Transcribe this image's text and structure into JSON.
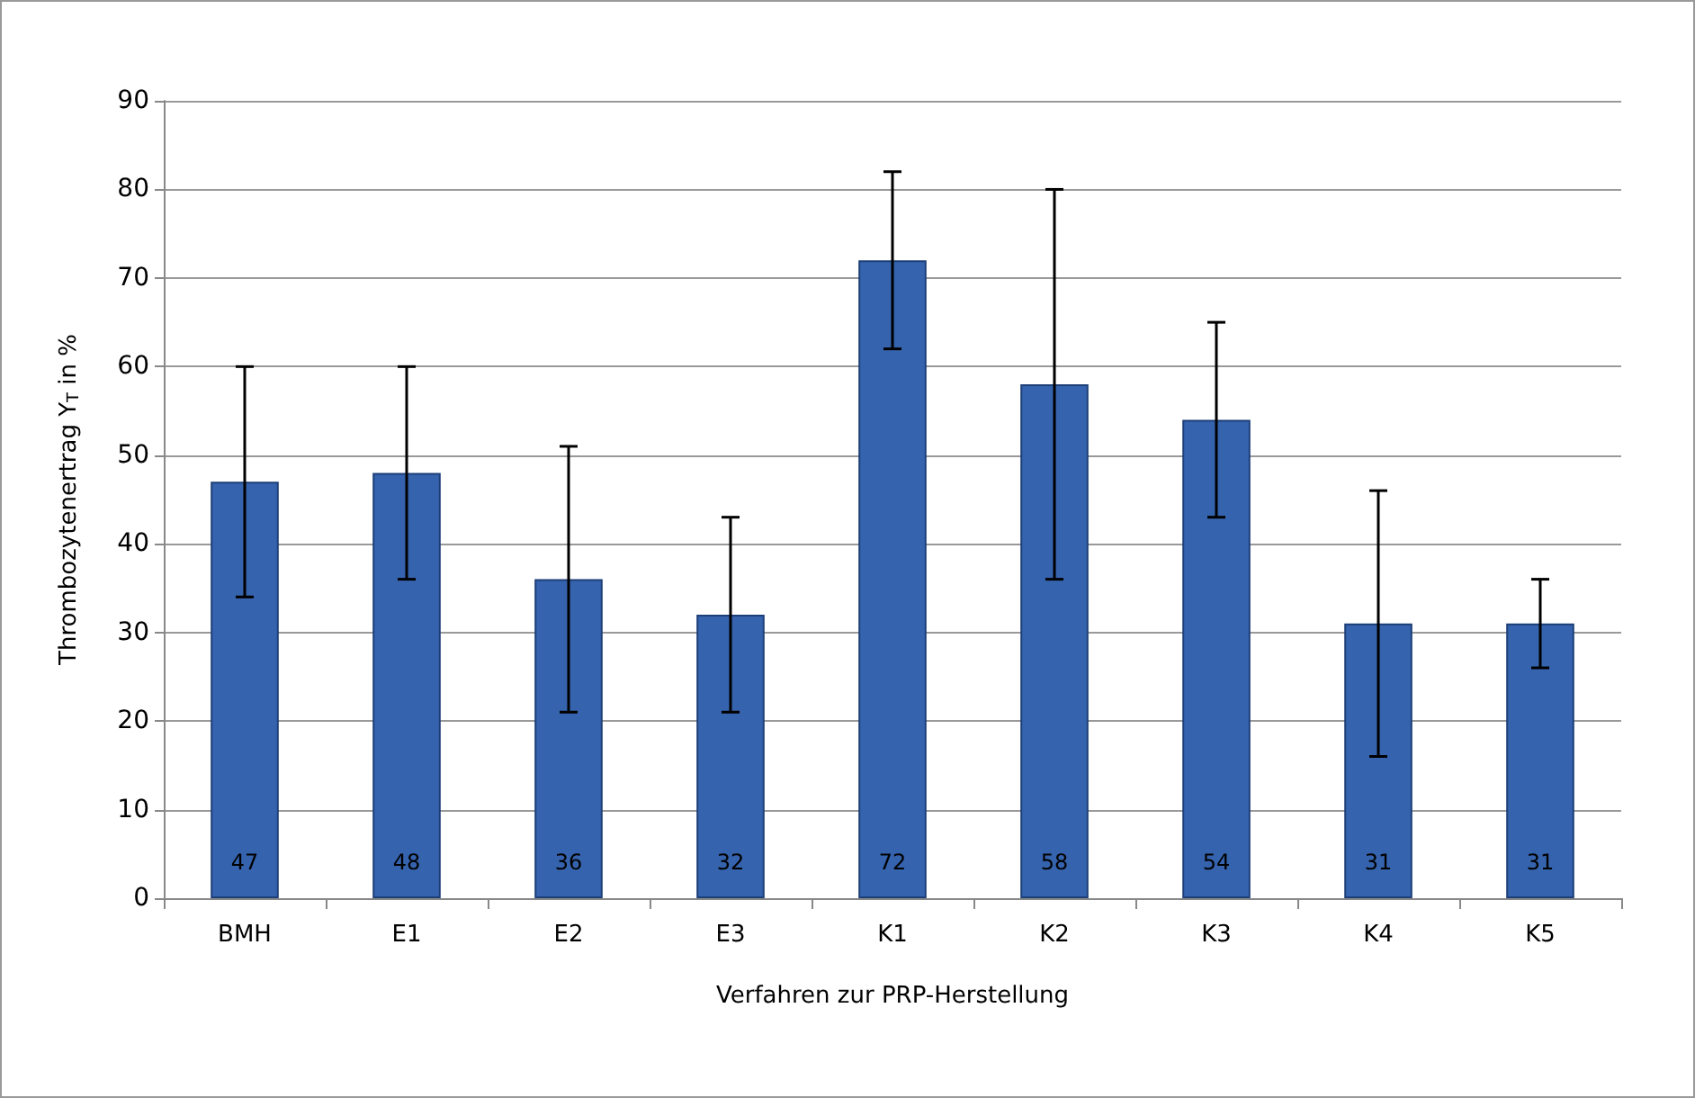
{
  "chart_data": {
    "type": "bar",
    "xlabel": "Verfahren zur PRP-Herstellung",
    "ylabel": "Thrombozytenertrag Y$_{T}$ in %",
    "categories": [
      "BMH",
      "E1",
      "E2",
      "E3",
      "K1",
      "K2",
      "K3",
      "K4",
      "K5"
    ],
    "values": [
      47,
      48,
      36,
      32,
      72,
      58,
      54,
      31,
      31
    ],
    "errors": [
      [
        34,
        60
      ],
      [
        36,
        60
      ],
      [
        21,
        51
      ],
      [
        21,
        43
      ],
      [
        62,
        82
      ],
      [
        36,
        80
      ],
      [
        43,
        65
      ],
      [
        16,
        46
      ],
      [
        26,
        36
      ]
    ],
    "color": "#3563ad",
    "data_labels": true,
    "ylim": [
      0,
      90
    ],
    "yticks": [
      0,
      10,
      20,
      30,
      40,
      50,
      60,
      70,
      80,
      90
    ],
    "grid": "y"
  }
}
